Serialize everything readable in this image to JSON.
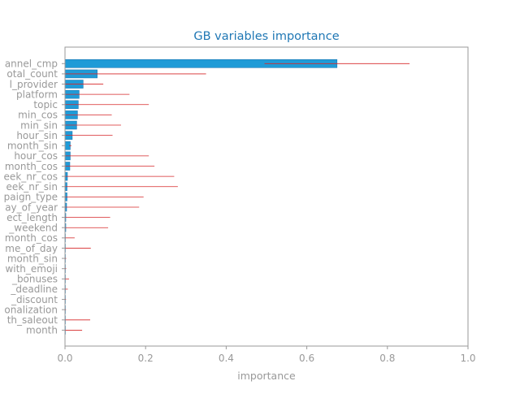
{
  "colors": {
    "title": "#1f77b4",
    "bar": "#1f9bd7",
    "bar_edge": "#1f78b4",
    "error": "#d62728",
    "axis": "#999999",
    "text": "#999999"
  },
  "chart_data": {
    "type": "bar",
    "orientation": "horizontal",
    "title": "GB variables importance",
    "xlabel": "importance",
    "ylabel": "",
    "xlim": [
      0,
      1.0
    ],
    "xticks": [
      0.0,
      0.2,
      0.4,
      0.6,
      0.8,
      1.0
    ],
    "xtick_labels": [
      "0.0",
      "0.2",
      "0.4",
      "0.6",
      "0.8",
      "1.0"
    ],
    "grid": false,
    "legend": "none",
    "categories": [
      "annel_cmp",
      "otal_count",
      "l_provider",
      "platform",
      "topic",
      "min_cos",
      "min_sin",
      "hour_sin",
      "month_sin",
      "hour_cos",
      "month_cos",
      "eek_nr_cos",
      "eek_nr_sin",
      "paign_type",
      "ay_of_year",
      "ect_length",
      "_weekend",
      "month_cos",
      "me_of_day",
      "month_sin",
      "with_emoji",
      "_bonuses",
      "_deadline",
      "_discount",
      "onalization",
      "th_saleout",
      "month"
    ],
    "values": [
      0.675,
      0.08,
      0.045,
      0.035,
      0.033,
      0.031,
      0.029,
      0.018,
      0.013,
      0.013,
      0.012,
      0.006,
      0.005,
      0.005,
      0.004,
      0.002,
      0.002,
      0.001,
      0.001,
      0.001,
      0.001,
      0.001,
      0.001,
      0.0005,
      0.0005,
      0.0005,
      0.0005
    ],
    "errors": [
      0.18,
      0.27,
      0.05,
      0.125,
      0.175,
      0.085,
      0.11,
      0.1,
      0.003,
      0.195,
      0.21,
      0.265,
      0.275,
      0.19,
      0.18,
      0.11,
      0.105,
      0.023,
      0.063,
      0.002,
      0.002,
      0.009,
      0.006,
      0.002,
      0.002,
      0.062,
      0.042
    ]
  }
}
